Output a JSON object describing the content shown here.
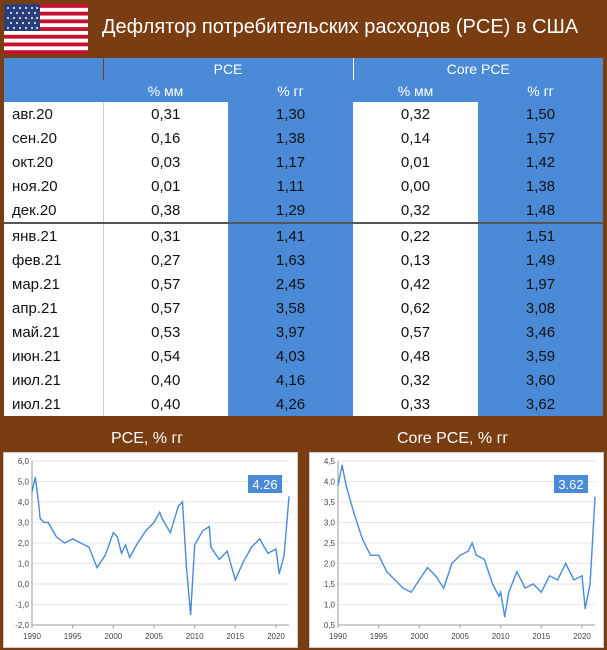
{
  "title": "Дефлятор потребительских расходов (PCE) в США",
  "table": {
    "groups": [
      "PCE",
      "Core PCE"
    ],
    "subheaders": [
      "% мм",
      "% гг",
      "% мм",
      "% гг"
    ],
    "rows": [
      {
        "label": "авг.20",
        "pce_mm": "0,31",
        "pce_yy": "1,30",
        "core_mm": "0,32",
        "core_yy": "1,50"
      },
      {
        "label": "сен.20",
        "pce_mm": "0,16",
        "pce_yy": "1,38",
        "core_mm": "0,14",
        "core_yy": "1,57"
      },
      {
        "label": "окт.20",
        "pce_mm": "0,03",
        "pce_yy": "1,17",
        "core_mm": "0,01",
        "core_yy": "1,42"
      },
      {
        "label": "ноя.20",
        "pce_mm": "0,01",
        "pce_yy": "1,11",
        "core_mm": "0,00",
        "core_yy": "1,38"
      },
      {
        "label": "дек.20",
        "pce_mm": "0,38",
        "pce_yy": "1,29",
        "core_mm": "0,32",
        "core_yy": "1,48"
      },
      {
        "label": "янв.21",
        "pce_mm": "0,31",
        "pce_yy": "1,41",
        "core_mm": "0,22",
        "core_yy": "1,51"
      },
      {
        "label": "фев.21",
        "pce_mm": "0,27",
        "pce_yy": "1,63",
        "core_mm": "0,13",
        "core_yy": "1,49"
      },
      {
        "label": "мар.21",
        "pce_mm": "0,57",
        "pce_yy": "2,45",
        "core_mm": "0,42",
        "core_yy": "1,97"
      },
      {
        "label": "апр.21",
        "pce_mm": "0,57",
        "pce_yy": "3,58",
        "core_mm": "0,62",
        "core_yy": "3,08"
      },
      {
        "label": "май.21",
        "pce_mm": "0,53",
        "pce_yy": "3,97",
        "core_mm": "0,57",
        "core_yy": "3,46"
      },
      {
        "label": "июн.21",
        "pce_mm": "0,54",
        "pce_yy": "4,03",
        "core_mm": "0,48",
        "core_yy": "3,59"
      },
      {
        "label": "июл.21",
        "pce_mm": "0,40",
        "pce_yy": "4,16",
        "core_mm": "0,32",
        "core_yy": "3,60"
      },
      {
        "label": "июл.21",
        "pce_mm": "0,40",
        "pce_yy": "4,26",
        "core_mm": "0,33",
        "core_yy": "3,62"
      }
    ]
  },
  "colors": {
    "accent": "#4a8ad6",
    "background": "#7a3d12",
    "line": "#4a8ad6"
  },
  "chart_data": [
    {
      "type": "line",
      "title": "PCE, % гг",
      "xlim": [
        1990,
        2021.6
      ],
      "ylim": [
        -2.0,
        6.0
      ],
      "yticks": [
        "-2,0",
        "-1,0",
        "0,0",
        "1,0",
        "2,0",
        "3,0",
        "4,0",
        "5,0",
        "6,0"
      ],
      "xticks": [
        "1990",
        "1995",
        "2000",
        "2005",
        "2010",
        "2015",
        "2020"
      ],
      "last_value_label": "4.26",
      "x": [
        1990,
        1990.4,
        1990.8,
        1991,
        1991.5,
        1992,
        1993,
        1994,
        1995,
        1996,
        1997,
        1998,
        1999,
        2000,
        2000.5,
        2001,
        2001.5,
        2002,
        2003,
        2004,
        2005,
        2005.7,
        2006,
        2007,
        2008,
        2008.5,
        2009,
        2009.5,
        2010,
        2011,
        2011.8,
        2012,
        2013,
        2014,
        2015,
        2016,
        2017,
        2018,
        2019,
        2020,
        2020.4,
        2021,
        2021.6
      ],
      "y": [
        4.5,
        5.2,
        4.0,
        3.2,
        3.0,
        3.0,
        2.3,
        2.0,
        2.2,
        2.0,
        1.8,
        0.8,
        1.4,
        2.5,
        2.3,
        1.5,
        1.9,
        1.3,
        2.0,
        2.6,
        3.0,
        3.5,
        3.2,
        2.5,
        3.8,
        4.0,
        0.8,
        -1.5,
        1.9,
        2.6,
        2.8,
        1.8,
        1.2,
        1.6,
        0.2,
        1.1,
        1.8,
        2.2,
        1.5,
        1.7,
        0.5,
        1.4,
        4.26
      ]
    },
    {
      "type": "line",
      "title": "Core PCE, % гг",
      "xlim": [
        1990,
        2021.6
      ],
      "ylim": [
        0.5,
        4.5
      ],
      "yticks": [
        "0,5",
        "1,0",
        "1,5",
        "2,0",
        "2,5",
        "3,0",
        "3,5",
        "4,0",
        "4,5"
      ],
      "xticks": [
        "1990",
        "1995",
        "2000",
        "2005",
        "2010",
        "2015",
        "2020"
      ],
      "last_value_label": "3.62",
      "x": [
        1990,
        1990.5,
        1990.8,
        1991,
        1992,
        1993,
        1994,
        1995,
        1996,
        1997,
        1998,
        1999,
        2000,
        2001,
        2002,
        2003,
        2004,
        2005,
        2006,
        2006.5,
        2007,
        2008,
        2009,
        2009.8,
        2010,
        2010.5,
        2011,
        2012,
        2013,
        2014,
        2015,
        2016,
        2017,
        2018,
        2019,
        2020,
        2020.4,
        2021,
        2021.6
      ],
      "y": [
        3.9,
        4.4,
        4.1,
        3.9,
        3.2,
        2.6,
        2.2,
        2.2,
        1.8,
        1.6,
        1.4,
        1.3,
        1.6,
        1.9,
        1.7,
        1.4,
        2.0,
        2.2,
        2.3,
        2.5,
        2.2,
        2.1,
        1.5,
        1.2,
        1.3,
        0.7,
        1.3,
        1.8,
        1.4,
        1.5,
        1.3,
        1.7,
        1.6,
        2.0,
        1.6,
        1.7,
        0.9,
        1.5,
        3.62
      ]
    }
  ]
}
